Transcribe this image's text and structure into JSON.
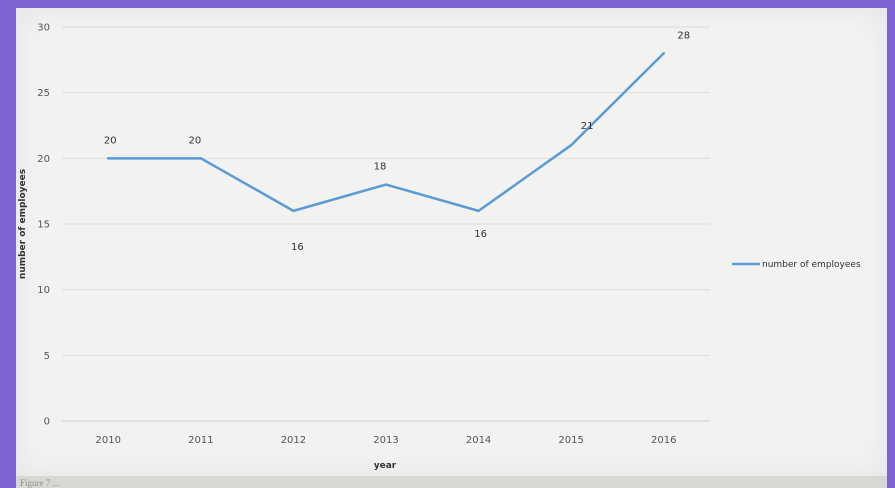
{
  "colors": {
    "background": "#7d63d4",
    "plot_area": "#f2f2f0",
    "gridline": "#dcdcdc",
    "series": "#5b9bd5"
  },
  "caption": "Figure 7 ...",
  "chart_data": {
    "type": "line",
    "x": [
      "2010",
      "2011",
      "2012",
      "2013",
      "2014",
      "2015",
      "2016"
    ],
    "series": [
      {
        "name": "number of employees",
        "values": [
          20,
          20,
          16,
          18,
          16,
          21,
          28
        ]
      }
    ],
    "data_labels": [
      "20",
      "20",
      "16",
      "18",
      "16",
      "21",
      "28"
    ],
    "xlabel": "year",
    "ylabel": "number of employees",
    "ylim": [
      0,
      30
    ],
    "yticks": [
      "0",
      "5",
      "10",
      "15",
      "20",
      "25",
      "30"
    ],
    "grid": true,
    "legend_position": "right"
  }
}
